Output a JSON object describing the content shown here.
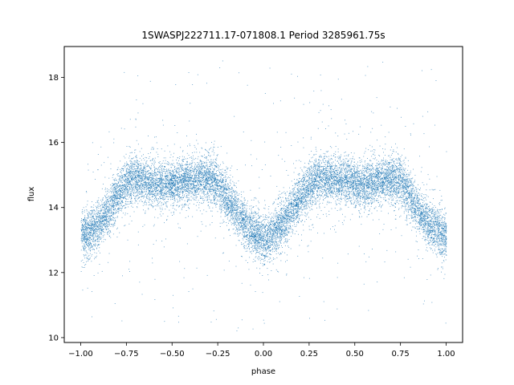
{
  "chart_data": {
    "type": "scatter",
    "title": "1SWASPJ222711.17-071808.1 Period 3285961.75s",
    "xlabel": "phase",
    "ylabel": "flux",
    "xlim": [
      -1.09,
      1.09
    ],
    "ylim": [
      9.85,
      18.95
    ],
    "x_ticks": [
      -1.0,
      -0.75,
      -0.5,
      -0.25,
      0.0,
      0.25,
      0.5,
      0.75,
      1.0
    ],
    "x_tick_labels": [
      "−1.00",
      "−0.75",
      "−0.50",
      "−0.25",
      "0.00",
      "0.25",
      "0.50",
      "0.75",
      "1.00"
    ],
    "y_ticks": [
      10,
      12,
      14,
      16,
      18
    ],
    "y_tick_labels": [
      "10",
      "12",
      "14",
      "16",
      "18"
    ],
    "grid": false,
    "marker_color": "#1f77b4",
    "series": [
      {
        "description": "folded light curve, symmetric about phase 0",
        "profile_phase": [
          0.0,
          0.05,
          0.1,
          0.15,
          0.2,
          0.25,
          0.3,
          0.35,
          0.4,
          0.45,
          0.5,
          0.55,
          0.6,
          0.65,
          0.7,
          0.75,
          0.8,
          0.85,
          0.9,
          0.95,
          1.0
        ],
        "profile_flux": [
          13.0,
          13.2,
          13.5,
          13.9,
          14.3,
          14.7,
          14.9,
          14.9,
          14.85,
          14.8,
          14.75,
          14.7,
          14.75,
          14.85,
          14.9,
          14.8,
          14.4,
          13.9,
          13.5,
          13.3,
          13.1
        ],
        "scatter_sigma": 0.35,
        "outlier_range": [
          10.2,
          18.6
        ],
        "point_count": 14000
      }
    ]
  }
}
